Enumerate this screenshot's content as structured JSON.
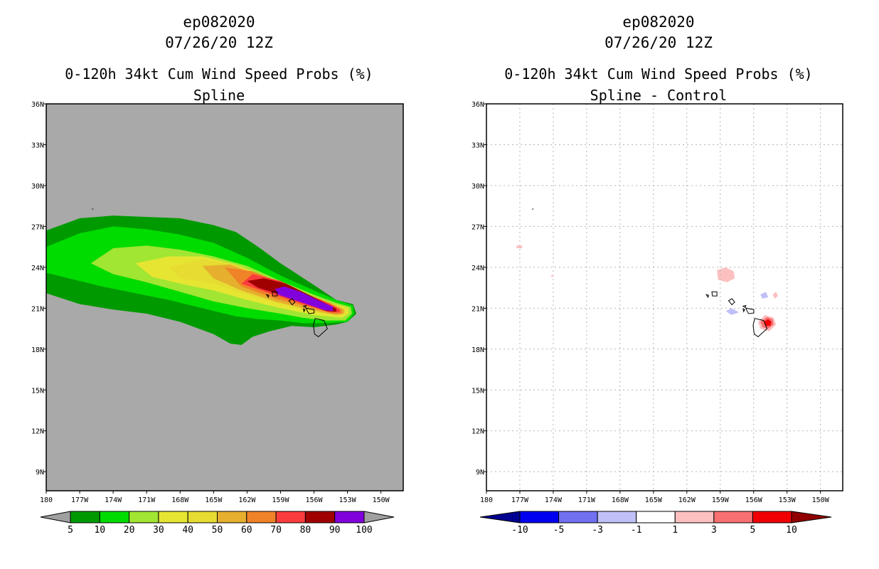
{
  "chart_data": [
    {
      "type": "heatmap",
      "title_lines": [
        "ep082020",
        "07/26/20 12Z",
        "0-120h 34kt Cum Wind Speed Probs (%)",
        "Spline"
      ],
      "xlabel": "",
      "ylabel": "",
      "x_ticks": [
        "180",
        "177W",
        "174W",
        "171W",
        "168W",
        "165W",
        "162W",
        "159W",
        "156W",
        "153W",
        "150W"
      ],
      "y_ticks": [
        "36N",
        "33N",
        "30N",
        "27N",
        "24N",
        "21N",
        "18N",
        "15N",
        "12N",
        "9N"
      ],
      "xlim": [
        -180,
        -148
      ],
      "ylim": [
        7.6,
        36
      ],
      "grid": false,
      "background_color": "#a9a9a9",
      "colorbar": {
        "labels": [
          "5",
          "10",
          "20",
          "30",
          "40",
          "50",
          "60",
          "70",
          "80",
          "90",
          "100"
        ],
        "colors": [
          "#009a00",
          "#00dc00",
          "#a0e632",
          "#e6e632",
          "#e6dc32",
          "#e6af2d",
          "#f08228",
          "#fa3c3c",
          "#a00000",
          "#8200dc"
        ],
        "end_colors": [
          "#a0a0a0",
          "#a0a0a0"
        ]
      },
      "levels": [
        {
          "min": 5,
          "color": "#009a00",
          "points": [
            [
              -180,
              26.7
            ],
            [
              -177,
              27.6
            ],
            [
              -174,
              27.8
            ],
            [
              -171,
              27.7
            ],
            [
              -168,
              27.6
            ],
            [
              -165,
              27.1
            ],
            [
              -163,
              26.6
            ],
            [
              -161,
              25.5
            ],
            [
              -159,
              24.3
            ],
            [
              -156,
              22.7
            ],
            [
              -154,
              21.6
            ],
            [
              -152.5,
              21.3
            ],
            [
              -152.2,
              20.6
            ],
            [
              -153,
              20.0
            ],
            [
              -154,
              19.8
            ],
            [
              -156,
              19.6
            ],
            [
              -158,
              19.7
            ],
            [
              -160,
              19.3
            ],
            [
              -161.5,
              18.9
            ],
            [
              -162.5,
              18.3
            ],
            [
              -163.5,
              18.4
            ],
            [
              -165,
              19.1
            ],
            [
              -168,
              20.0
            ],
            [
              -171,
              20.6
            ],
            [
              -174,
              20.9
            ],
            [
              -177,
              21.3
            ],
            [
              -180,
              22.1
            ]
          ]
        },
        {
          "min": 10,
          "color": "#00dc00",
          "points": [
            [
              -180,
              25.5
            ],
            [
              -177,
              26.5
            ],
            [
              -174,
              27.0
            ],
            [
              -171,
              26.8
            ],
            [
              -168,
              26.4
            ],
            [
              -165,
              25.8
            ],
            [
              -162,
              24.7
            ],
            [
              -159,
              23.4
            ],
            [
              -156,
              22.3
            ],
            [
              -154,
              21.6
            ],
            [
              -152.5,
              21.2
            ],
            [
              -152.4,
              20.6
            ],
            [
              -153,
              20.0
            ],
            [
              -155,
              19.9
            ],
            [
              -157,
              19.9
            ],
            [
              -159,
              20.1
            ],
            [
              -161,
              20.2
            ],
            [
              -163,
              20.4
            ],
            [
              -166,
              21.0
            ],
            [
              -169,
              21.6
            ],
            [
              -172,
              22.1
            ],
            [
              -175,
              22.6
            ],
            [
              -178,
              23.2
            ],
            [
              -180,
              23.6
            ]
          ]
        },
        {
          "min": 20,
          "color": "#a0e632",
          "points": [
            [
              -176,
              24.3
            ],
            [
              -174,
              25.4
            ],
            [
              -171,
              25.6
            ],
            [
              -168,
              25.3
            ],
            [
              -165,
              24.8
            ],
            [
              -162,
              24.1
            ],
            [
              -159,
              23.0
            ],
            [
              -156,
              22.0
            ],
            [
              -154,
              21.4
            ],
            [
              -152.7,
              21.1
            ],
            [
              -152.6,
              20.6
            ],
            [
              -153.2,
              20.1
            ],
            [
              -155,
              20.1
            ],
            [
              -157,
              20.3
            ],
            [
              -159,
              20.6
            ],
            [
              -162,
              21.0
            ],
            [
              -165,
              21.5
            ],
            [
              -168,
              22.2
            ],
            [
              -171,
              22.9
            ],
            [
              -174,
              23.5
            ]
          ]
        },
        {
          "min": 30,
          "color": "#e6e632",
          "points": [
            [
              -172,
              24.3
            ],
            [
              -169,
              24.8
            ],
            [
              -166,
              24.8
            ],
            [
              -163,
              24.2
            ],
            [
              -160,
              23.2
            ],
            [
              -157,
              22.1
            ],
            [
              -154.5,
              21.4
            ],
            [
              -152.9,
              21.0
            ],
            [
              -152.9,
              20.6
            ],
            [
              -153.5,
              20.3
            ],
            [
              -156,
              20.5
            ],
            [
              -159,
              21.0
            ],
            [
              -162,
              21.6
            ],
            [
              -165,
              22.3
            ],
            [
              -168,
              22.8
            ],
            [
              -170.5,
              23.3
            ]
          ]
        },
        {
          "min": 40,
          "color": "#e6dc32",
          "points": [
            [
              -169,
              24.0
            ],
            [
              -166,
              24.6
            ],
            [
              -163,
              24.2
            ],
            [
              -160,
              23.2
            ],
            [
              -157,
              22.1
            ],
            [
              -154.5,
              21.4
            ],
            [
              -153.1,
              20.9
            ],
            [
              -153.1,
              20.6
            ],
            [
              -153.7,
              20.4
            ],
            [
              -156,
              20.7
            ],
            [
              -159,
              21.3
            ],
            [
              -162,
              22.0
            ],
            [
              -165,
              22.8
            ],
            [
              -168,
              23.2
            ]
          ]
        },
        {
          "min": 50,
          "color": "#e6af2d",
          "points": [
            [
              -166,
              24.1
            ],
            [
              -163.5,
              24.2
            ],
            [
              -160.5,
              23.3
            ],
            [
              -157,
              22.1
            ],
            [
              -154.5,
              21.4
            ],
            [
              -153.3,
              20.9
            ],
            [
              -153.3,
              20.6
            ],
            [
              -154,
              20.5
            ],
            [
              -156.5,
              20.9
            ],
            [
              -159.5,
              21.5
            ],
            [
              -162.5,
              22.3
            ],
            [
              -165,
              23.2
            ]
          ]
        },
        {
          "min": 60,
          "color": "#f08228",
          "points": [
            [
              -164,
              24.0
            ],
            [
              -161.5,
              23.7
            ],
            [
              -159,
              22.9
            ],
            [
              -156.5,
              21.9
            ],
            [
              -154.5,
              21.3
            ],
            [
              -153.5,
              20.9
            ],
            [
              -153.5,
              20.6
            ],
            [
              -154.3,
              20.6
            ],
            [
              -156.5,
              21.1
            ],
            [
              -159.5,
              21.7
            ],
            [
              -162.5,
              22.6
            ]
          ]
        },
        {
          "min": 70,
          "color": "#fa3c3c",
          "points": [
            [
              -161.5,
              23.5
            ],
            [
              -159,
              23.0
            ],
            [
              -156.5,
              22.0
            ],
            [
              -154.5,
              21.3
            ],
            [
              -153.7,
              20.9
            ],
            [
              -153.7,
              20.7
            ],
            [
              -154.6,
              20.7
            ],
            [
              -157,
              21.3
            ],
            [
              -160,
              22.1
            ],
            [
              -162.5,
              22.8
            ]
          ]
        },
        {
          "min": 80,
          "color": "#a00000",
          "points": [
            [
              -160.5,
              23.2
            ],
            [
              -158.5,
              22.8
            ],
            [
              -156.5,
              22.0
            ],
            [
              -154.8,
              21.3
            ],
            [
              -154.0,
              20.95
            ],
            [
              -154.0,
              20.75
            ],
            [
              -154.9,
              20.8
            ],
            [
              -157.5,
              21.6
            ],
            [
              -161,
              22.5
            ],
            [
              -162,
              23.0
            ]
          ]
        },
        {
          "min": 90,
          "color": "#8200dc",
          "points": [
            [
              -158.7,
              22.6
            ],
            [
              -157.2,
              22.2
            ],
            [
              -155.7,
              21.6
            ],
            [
              -154.3,
              21.1
            ],
            [
              -154.3,
              20.8
            ],
            [
              -155,
              20.85
            ],
            [
              -157,
              21.4
            ],
            [
              -159.2,
              22.0
            ],
            [
              -159.5,
              22.4
            ]
          ]
        }
      ]
    },
    {
      "type": "heatmap",
      "title_lines": [
        "ep082020",
        "07/26/20 12Z",
        "0-120h 34kt Cum Wind Speed Probs (%)",
        "Spline - Control"
      ],
      "xlabel": "",
      "ylabel": "",
      "x_ticks": [
        "180",
        "177W",
        "174W",
        "171W",
        "168W",
        "165W",
        "162W",
        "159W",
        "156W",
        "153W",
        "150W"
      ],
      "y_ticks": [
        "36N",
        "33N",
        "30N",
        "27N",
        "24N",
        "21N",
        "18N",
        "15N",
        "12N",
        "9N"
      ],
      "xlim": [
        -180,
        -148
      ],
      "ylim": [
        7.6,
        36
      ],
      "grid": true,
      "background_color": "#ffffff",
      "colorbar": {
        "labels": [
          "-10",
          "-5",
          "-3",
          "-1",
          "1",
          "3",
          "5",
          "10"
        ],
        "colors": [
          "#0000f0",
          "#7070f0",
          "#c0c0f8",
          "#ffffff",
          "#fcc0c0",
          "#f87070",
          "#f00000"
        ],
        "end_colors": [
          "#000090",
          "#900000"
        ]
      },
      "levels": [
        {
          "min": 1,
          "color": "#fcc0c0",
          "points": [
            [
              -159.3,
              23.8
            ],
            [
              -158.5,
              24.0
            ],
            [
              -157.8,
              23.7
            ],
            [
              -157.7,
              23.2
            ],
            [
              -158.4,
              22.9
            ],
            [
              -159.2,
              23.1
            ]
          ]
        },
        {
          "min": -1,
          "color": "#c0c0f8",
          "points": [
            [
              -158.5,
              20.8
            ],
            [
              -158.0,
              21.0
            ],
            [
              -157.3,
              20.7
            ],
            [
              -158.0,
              20.5
            ]
          ]
        },
        {
          "min": -1,
          "color": "#c0c0f8",
          "points": [
            [
              -155.4,
              22.0
            ],
            [
              -154.9,
              22.2
            ],
            [
              -154.7,
              21.8
            ],
            [
              -155.2,
              21.7
            ]
          ]
        },
        {
          "min": 1,
          "color": "#fcc0c0",
          "points": [
            [
              -154.3,
              22.0
            ],
            [
              -154.0,
              22.2
            ],
            [
              -153.8,
              21.9
            ],
            [
              -154.1,
              21.7
            ]
          ]
        },
        {
          "min": 1,
          "color": "#fcc0c0",
          "points": [
            [
              -155.6,
              20.0
            ],
            [
              -155.0,
              20.5
            ],
            [
              -154.2,
              20.3
            ],
            [
              -154.0,
              19.8
            ],
            [
              -154.6,
              19.3
            ],
            [
              -155.4,
              19.5
            ]
          ]
        },
        {
          "min": 3,
          "color": "#f87070",
          "points": [
            [
              -155.4,
              20.0
            ],
            [
              -154.8,
              20.35
            ],
            [
              -154.3,
              20.2
            ],
            [
              -154.2,
              19.8
            ],
            [
              -154.7,
              19.5
            ],
            [
              -155.2,
              19.6
            ]
          ]
        },
        {
          "min": 5,
          "color": "#f00000",
          "points": [
            [
              -155.1,
              20.0
            ],
            [
              -154.7,
              20.2
            ],
            [
              -154.4,
              20.0
            ],
            [
              -154.5,
              19.7
            ],
            [
              -154.9,
              19.7
            ]
          ]
        },
        {
          "min": 1,
          "color": "#fcc0c0",
          "points": [
            [
              -177.3,
              25.6
            ],
            [
              -176.8,
              25.6
            ],
            [
              -176.8,
              25.4
            ],
            [
              -177.3,
              25.4
            ]
          ]
        },
        {
          "min": 1,
          "color": "#fcc0c0",
          "points": [
            [
              -174.2,
              23.4
            ],
            [
              -174.0,
              23.4
            ],
            [
              -174.0,
              23.3
            ],
            [
              -174.2,
              23.3
            ]
          ]
        }
      ]
    }
  ]
}
